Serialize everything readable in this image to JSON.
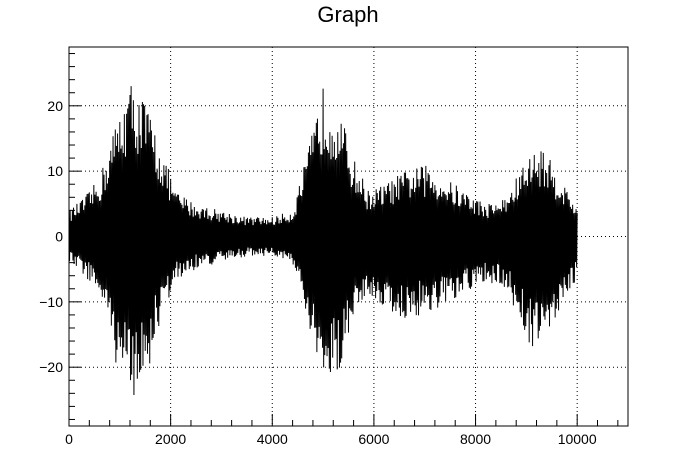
{
  "chart_data": {
    "type": "line",
    "title": "Graph",
    "xlabel": "",
    "ylabel": "",
    "xlim": [
      0,
      11000
    ],
    "ylim": [
      -29,
      29
    ],
    "grid": true,
    "legend": "none",
    "x_ticks": [
      0,
      2000,
      4000,
      6000,
      8000,
      10000
    ],
    "x_tick_labels": [
      "0",
      "2000",
      "4000",
      "6000",
      "8000",
      "10000"
    ],
    "y_ticks": [
      -20,
      -10,
      0,
      10,
      20
    ],
    "y_tick_labels": [
      "−20",
      "−10",
      "0",
      "10",
      "20"
    ],
    "x_range": [
      0,
      10000
    ],
    "envelope": {
      "x": [
        0,
        300,
        600,
        900,
        1200,
        1500,
        1800,
        2100,
        2500,
        3000,
        3500,
        4000,
        4400,
        4700,
        5000,
        5300,
        5600,
        5900,
        6200,
        6600,
        7000,
        7400,
        7800,
        8200,
        8600,
        9000,
        9300,
        9600,
        9900,
        10000
      ],
      "y_max": [
        4,
        6,
        9,
        17,
        24,
        21,
        14,
        7,
        5,
        4,
        3,
        3,
        4,
        13,
        23,
        20,
        12,
        7,
        8,
        10,
        11,
        9,
        7,
        5,
        6,
        12,
        14,
        10,
        6,
        5
      ],
      "y_min": [
        -4,
        -6,
        -9,
        -19,
        -25,
        -23,
        -13,
        -7,
        -5,
        -4,
        -3,
        -3,
        -4,
        -14,
        -24,
        -21,
        -12,
        -9,
        -11,
        -13,
        -12,
        -11,
        -9,
        -7,
        -8,
        -16,
        -18,
        -12,
        -8,
        -6
      ]
    },
    "line_color": "#000000"
  },
  "colors": {
    "frame": "#000000",
    "grid": "#000000",
    "background": "#ffffff"
  }
}
